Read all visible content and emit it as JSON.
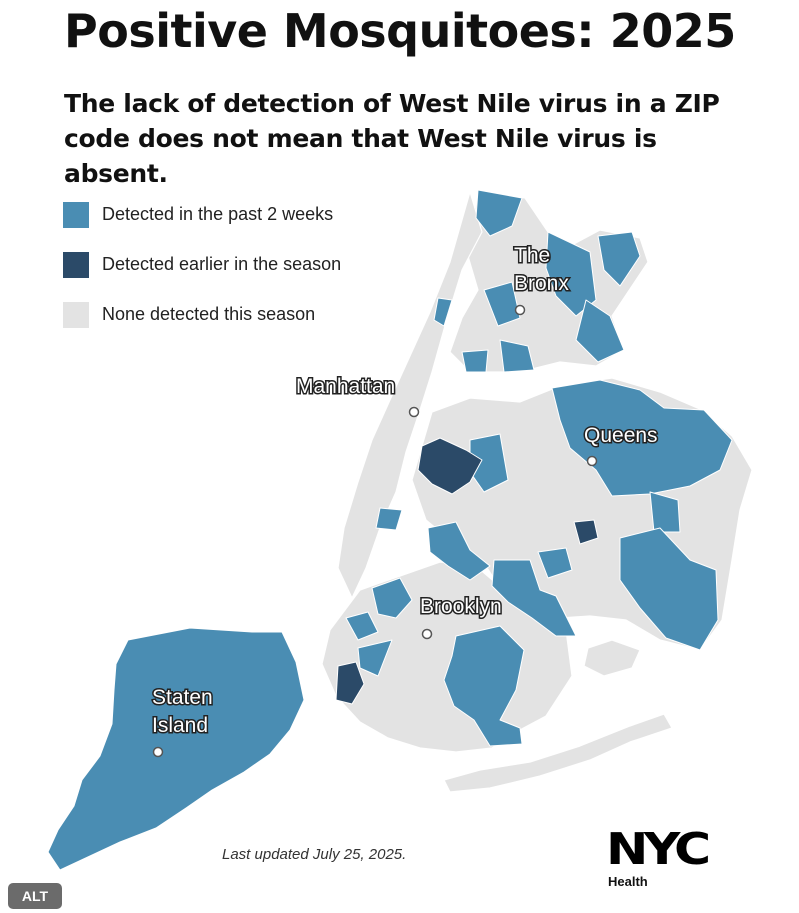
{
  "title": "Positive Mosquitoes: 2025",
  "subtitle": "The lack of detection of West Nile virus in a ZIP code does not mean that West Nile virus is absent.",
  "legend": [
    {
      "label": "Detected in the past 2 weeks",
      "color": "#4a8db3"
    },
    {
      "label": "Detected earlier in the season",
      "color": "#2b4a68"
    },
    {
      "label": "None detected this season",
      "color": "#e3e3e3"
    }
  ],
  "boroughs": {
    "bronx": [
      "The",
      "Bronx"
    ],
    "manhattan": "Manhattan",
    "queens": "Queens",
    "brooklyn": "Brooklyn",
    "staten_island": [
      "Staten",
      "Island"
    ]
  },
  "footer": {
    "last_updated": "Last updated July 25, 2025."
  },
  "logo": {
    "name": "NYC",
    "sub": "Health"
  },
  "alt_button": "ALT"
}
